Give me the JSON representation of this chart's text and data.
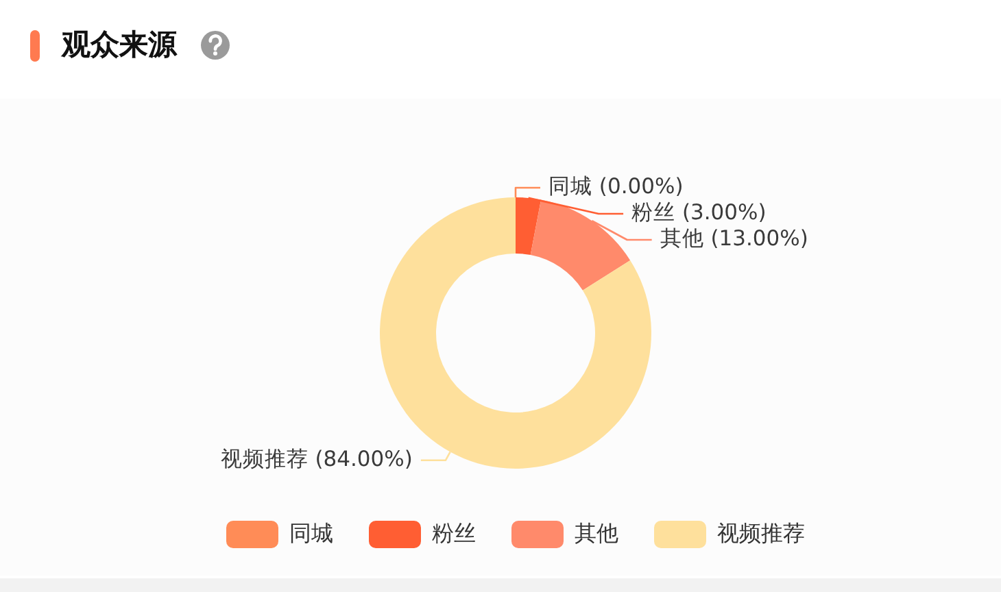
{
  "chart_data": {
    "type": "donut",
    "title": "观众来源",
    "categories": [
      "同城",
      "粉丝",
      "其他",
      "视频推荐"
    ],
    "values": [
      0,
      3,
      13,
      84
    ],
    "colors": [
      "#ff8c57",
      "#ff5e33",
      "#ff8a6b",
      "#fee09c"
    ],
    "value_labels": [
      "同城 (0.00%)",
      "粉丝 (3.00%)",
      "其他 (13.00%)",
      "视频推荐 (84.00%)"
    ],
    "legend": "bottom"
  }
}
